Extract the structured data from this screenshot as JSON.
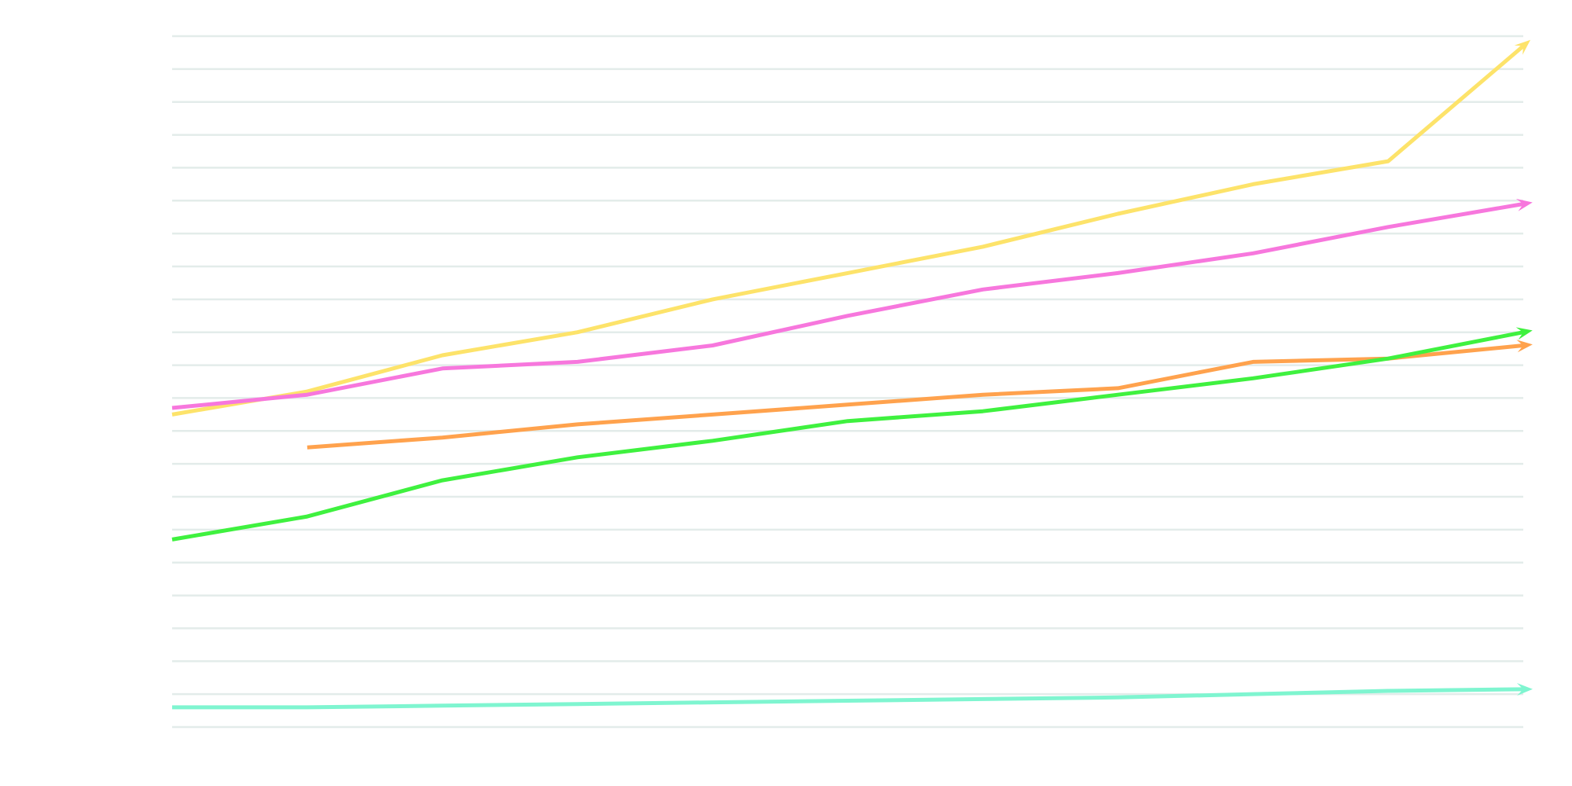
{
  "chart_data": {
    "type": "line",
    "title": "",
    "xlabel": "",
    "ylabel": "",
    "grid": true,
    "ylim": [
      0,
      21
    ],
    "x": [
      1,
      2,
      3,
      4,
      5,
      6,
      7,
      8,
      9,
      10,
      11
    ],
    "series": [
      {
        "color": "#fde36a",
        "values": [
          9.5,
          10.2,
          11.3,
          12.0,
          13.0,
          13.8,
          14.6,
          15.6,
          16.5,
          17.2,
          20.7
        ]
      },
      {
        "color": "#f777dd",
        "values": [
          9.7,
          10.1,
          10.9,
          11.1,
          11.6,
          12.5,
          13.3,
          13.8,
          14.4,
          15.2,
          15.9
        ]
      },
      {
        "color": "#ffa24d",
        "values": [
          null,
          8.5,
          8.8,
          9.2,
          9.5,
          9.8,
          10.1,
          10.3,
          11.1,
          11.2,
          11.6
        ]
      },
      {
        "color": "#3ff13f",
        "values": [
          5.7,
          6.4,
          7.5,
          8.2,
          8.7,
          9.3,
          9.6,
          10.1,
          10.6,
          11.2,
          12.0
        ]
      },
      {
        "color": "#7ff5d0",
        "values": [
          0.6,
          0.6,
          0.65,
          0.7,
          0.75,
          0.8,
          0.85,
          0.9,
          1.0,
          1.1,
          1.15
        ]
      }
    ]
  }
}
